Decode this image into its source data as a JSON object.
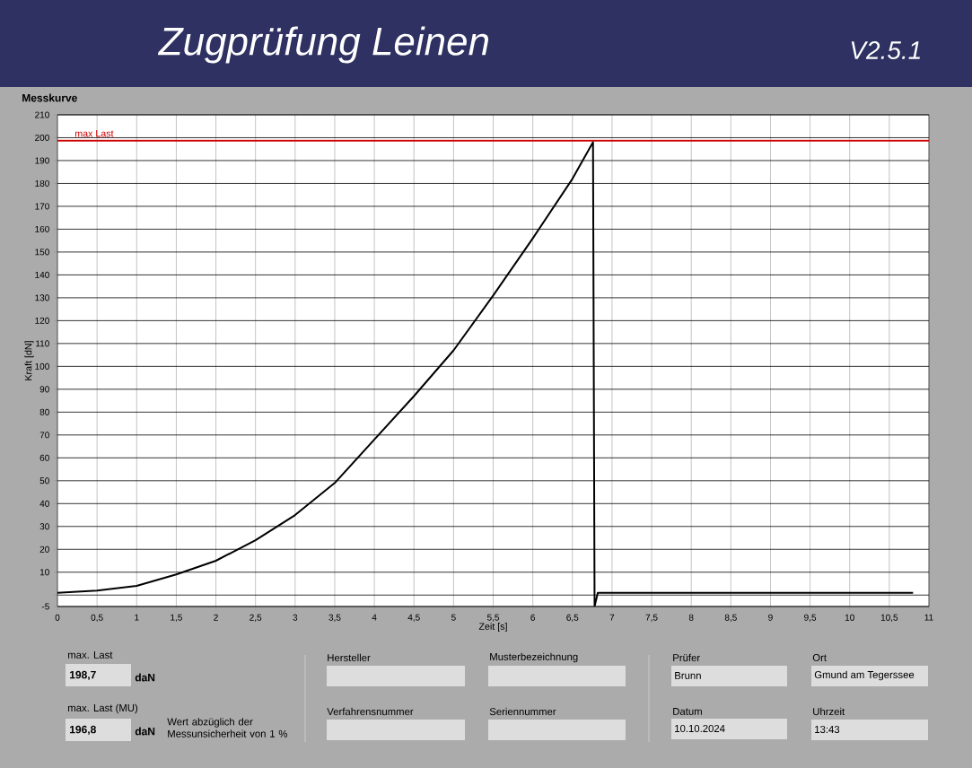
{
  "chart_data": {
    "type": "line",
    "title": "Zugprüfung Leinen",
    "subtitle": "V2.5.1",
    "xlabel": "Zeit [s]",
    "ylabel": "Kraft [dN]",
    "x": [
      0,
      0.5,
      1,
      1.5,
      2,
      2.5,
      3,
      3.5,
      4,
      4.5,
      5,
      5.5,
      6,
      6.5,
      6.76,
      6.78,
      6.82,
      7,
      8,
      9,
      10,
      10.8
    ],
    "series": [
      {
        "color": "#000000",
        "values": [
          1,
          2,
          4,
          9,
          15,
          24,
          35,
          49,
          68,
          87,
          107,
          131,
          156,
          182,
          198,
          -5,
          1,
          1,
          1,
          1,
          1,
          1
        ]
      }
    ],
    "xlim": [
      0,
      11
    ],
    "ylim": [
      -5,
      210
    ],
    "xticks": [
      {
        "value": 0,
        "label": "0"
      },
      {
        "value": 0.5,
        "label": "0,5"
      },
      {
        "value": 1,
        "label": "1"
      },
      {
        "value": 1.5,
        "label": "1,5"
      },
      {
        "value": 2,
        "label": "2"
      },
      {
        "value": 2.5,
        "label": "2,5"
      },
      {
        "value": 3,
        "label": "3"
      },
      {
        "value": 3.5,
        "label": "3,5"
      },
      {
        "value": 4,
        "label": "4"
      },
      {
        "value": 4.5,
        "label": "4,5"
      },
      {
        "value": 5,
        "label": "5"
      },
      {
        "value": 5.5,
        "label": "5,5"
      },
      {
        "value": 6,
        "label": "6"
      },
      {
        "value": 6.5,
        "label": "6,5"
      },
      {
        "value": 7,
        "label": "7"
      },
      {
        "value": 7.5,
        "label": "7,5"
      },
      {
        "value": 8,
        "label": "8"
      },
      {
        "value": 8.5,
        "label": "8,5"
      },
      {
        "value": 9,
        "label": "9"
      },
      {
        "value": 9.5,
        "label": "9,5"
      },
      {
        "value": 10,
        "label": "10"
      },
      {
        "value": 10.5,
        "label": "10,5"
      },
      {
        "value": 11,
        "label": "11"
      }
    ],
    "yticks": [
      -5,
      {
        "value": 0,
        "label": null
      },
      10,
      20,
      30,
      40,
      50,
      60,
      70,
      80,
      90,
      100,
      110,
      120,
      130,
      140,
      150,
      160,
      170,
      180,
      190,
      200,
      210
    ],
    "grid": true,
    "marker": "none",
    "line_style": "solid",
    "ref_lines": [
      {
        "axis": "y",
        "value": 198.7,
        "label": "max Last",
        "color": "#cc0000"
      }
    ],
    "annotations": [
      "Messkurve",
      "max. Last",
      "198,7",
      "daN",
      "max. Last (MU)",
      "196,8",
      "daN",
      "Wert abzüglich der Messunsicherheit von 1 %",
      "Hersteller",
      "Musterbezeichnung",
      "Verfahrensnummer",
      "Seriennummer",
      "Prüfer",
      "Brunn",
      "Datum",
      "10.10.2024",
      "Ort",
      "Gmund am Tegerssee",
      "Uhrzeit",
      "13:43"
    ]
  }
}
